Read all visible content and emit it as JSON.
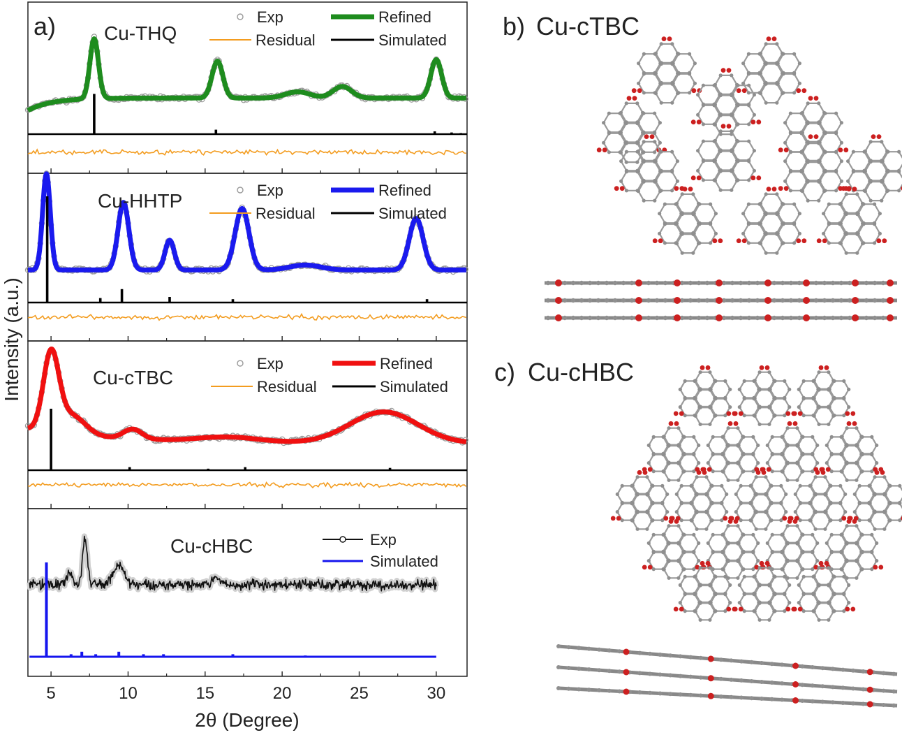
{
  "panels": {
    "a": {
      "letter": "a)"
    },
    "b": {
      "letter": "b)",
      "title": "Cu-cTBC"
    },
    "c": {
      "letter": "c)",
      "title": "Cu-cHBC"
    }
  },
  "colors": {
    "exp_marker": "#9a9a9a",
    "residual": "#f39c1f",
    "simulated": "#000000",
    "refined_thq": "#1e8c1e",
    "refined_hhtp": "#1a1aee",
    "refined_ctbc": "#f01010",
    "simulated_chbc": "#1515ee",
    "carbon": "#8f8f8f",
    "oxygen": "#cc2020",
    "copper": "#d46060"
  },
  "chart_data": {
    "type": "line",
    "xlabel": "2θ (Degree)",
    "ylabel": "Intensity (a.u.)",
    "xlim": [
      3.5,
      32
    ],
    "xticks": [
      5,
      10,
      15,
      20,
      25,
      30
    ],
    "xtick_labels": [
      "5",
      "10",
      "15",
      "20",
      "25",
      "30"
    ],
    "legend_labels": {
      "exp": "Exp",
      "refined": "Refined",
      "residual": "Residual",
      "simulated": "Simulated"
    },
    "subplots": [
      {
        "sample": "Cu-THQ",
        "legend": [
          "Exp",
          "Refined",
          "Residual",
          "Simulated"
        ],
        "baseline": 0.27,
        "refined_peaks": [
          {
            "x": 7.8,
            "height": 0.78,
            "width": 0.28
          },
          {
            "x": 15.8,
            "height": 0.48,
            "width": 0.35
          },
          {
            "x": 21.0,
            "height": 0.08,
            "width": 0.8
          },
          {
            "x": 23.9,
            "height": 0.15,
            "width": 0.6
          },
          {
            "x": 30.0,
            "height": 0.5,
            "width": 0.35
          }
        ],
        "simulated_peaks": [
          {
            "x": 7.8,
            "height": 0.72
          },
          {
            "x": 15.7,
            "height": 0.08
          },
          {
            "x": 29.9,
            "height": 0.05
          },
          {
            "x": 31.0,
            "height": 0.03
          },
          {
            "x": 31.6,
            "height": 0.02
          }
        ]
      },
      {
        "sample": "Cu-HHTP",
        "legend": [
          "Exp",
          "Refined",
          "Residual",
          "Simulated"
        ],
        "baseline": 0.18,
        "refined_peaks": [
          {
            "x": 4.7,
            "height": 0.97,
            "width": 0.25
          },
          {
            "x": 9.7,
            "height": 0.68,
            "width": 0.35
          },
          {
            "x": 12.7,
            "height": 0.3,
            "width": 0.3
          },
          {
            "x": 17.4,
            "height": 0.62,
            "width": 0.45
          },
          {
            "x": 21.5,
            "height": 0.05,
            "width": 1.0
          },
          {
            "x": 28.7,
            "height": 0.52,
            "width": 0.45
          }
        ],
        "simulated_peaks": [
          {
            "x": 4.75,
            "height": 0.95
          },
          {
            "x": 8.2,
            "height": 0.04
          },
          {
            "x": 9.6,
            "height": 0.12
          },
          {
            "x": 12.7,
            "height": 0.05
          },
          {
            "x": 16.8,
            "height": 0.03
          },
          {
            "x": 29.4,
            "height": 0.03
          }
        ]
      },
      {
        "sample": "Cu-cTBC",
        "legend": [
          "Exp",
          "Refined",
          "Residual",
          "Simulated"
        ],
        "baseline": 0.18,
        "refined_peaks": [
          {
            "x": 5.0,
            "height": 0.78,
            "width": 0.5
          },
          {
            "x": 6.3,
            "height": 0.2,
            "width": 0.9
          },
          {
            "x": 10.3,
            "height": 0.1,
            "width": 0.6
          },
          {
            "x": 16.5,
            "height": 0.05,
            "width": 2.0
          },
          {
            "x": 26.6,
            "height": 0.32,
            "width": 2.2
          }
        ],
        "simulated_peaks": [
          {
            "x": 5.0,
            "height": 0.8
          },
          {
            "x": 10.1,
            "height": 0.04
          },
          {
            "x": 15.2,
            "height": 0.02
          },
          {
            "x": 17.6,
            "height": 0.04
          },
          {
            "x": 27.0,
            "height": 0.03
          }
        ]
      },
      {
        "sample": "Cu-cHBC",
        "legend": [
          "Exp",
          "Simulated"
        ],
        "exp_range": [
          3.6,
          30
        ],
        "baseline": 0.45,
        "exp_peaks": [
          {
            "x": 6.2,
            "height": 0.12,
            "width": 0.2
          },
          {
            "x": 7.2,
            "height": 0.48,
            "width": 0.15
          },
          {
            "x": 9.4,
            "height": 0.2,
            "width": 0.35
          },
          {
            "x": 15.6,
            "height": 0.06,
            "width": 0.3
          }
        ],
        "simulated_range": [
          3.6,
          30
        ],
        "simulated_baseline": 0.1,
        "simulated_peaks": [
          {
            "x": 4.7,
            "height": 0.75
          },
          {
            "x": 6.3,
            "height": 0.02
          },
          {
            "x": 7.0,
            "height": 0.04
          },
          {
            "x": 7.9,
            "height": 0.02
          },
          {
            "x": 9.4,
            "height": 0.04
          },
          {
            "x": 11.0,
            "height": 0.02
          },
          {
            "x": 12.3,
            "height": 0.02
          },
          {
            "x": 16.8,
            "height": 0.02
          },
          {
            "x": 21.5,
            "height": 0.01
          }
        ]
      }
    ]
  }
}
